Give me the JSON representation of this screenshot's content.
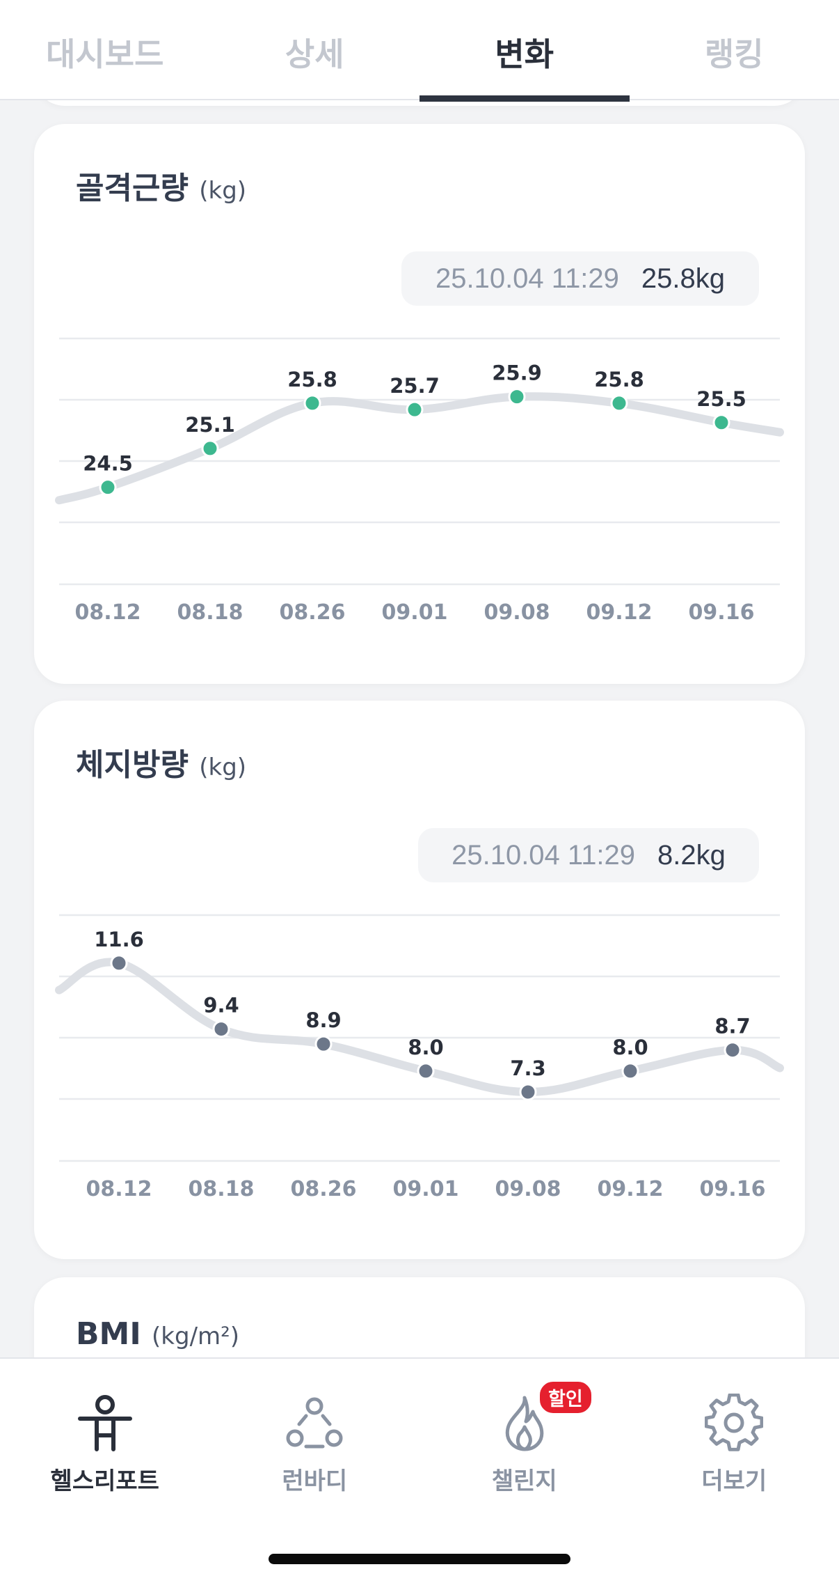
{
  "top_tabs": [
    {
      "label": "대시보드",
      "active": false
    },
    {
      "label": "상세",
      "active": false
    },
    {
      "label": "변화",
      "active": true
    },
    {
      "label": "랭킹",
      "active": false
    }
  ],
  "cards": [
    {
      "title": "골격근량",
      "unit": "(kg)",
      "latest_timestamp": "25.10.04 11:29",
      "latest_value": "25.8kg"
    },
    {
      "title": "체지방량",
      "unit": "(kg)",
      "latest_timestamp": "25.10.04 11:29",
      "latest_value": "8.2kg"
    },
    {
      "title": "BMI",
      "unit": "(kg/m²)"
    }
  ],
  "chart_data": [
    {
      "type": "line",
      "categories": [
        "08.12",
        "08.18",
        "08.26",
        "09.01",
        "09.08",
        "09.12",
        "09.16"
      ],
      "series": [
        {
          "values": [
            24.5,
            25.1,
            25.8,
            25.7,
            25.9,
            25.8,
            25.5
          ]
        }
      ],
      "point_color": "#3db88f",
      "line_color": "#dde0e5",
      "grid": true
    },
    {
      "type": "line",
      "categories": [
        "08.12",
        "08.18",
        "08.26",
        "09.01",
        "09.08",
        "09.12",
        "09.16"
      ],
      "series": [
        {
          "values": [
            11.6,
            9.4,
            8.9,
            8.0,
            7.3,
            8.0,
            8.7
          ]
        }
      ],
      "point_color": "#6c7789",
      "line_color": "#dde0e5",
      "grid": true
    }
  ],
  "bottom_nav": [
    {
      "label": "헬스리포트",
      "icon": "person-icon",
      "active": true
    },
    {
      "label": "런바디",
      "icon": "group-icon",
      "active": false
    },
    {
      "label": "챌린지",
      "icon": "flame-icon",
      "active": false,
      "badge": "할인"
    },
    {
      "label": "더보기",
      "icon": "gear-icon",
      "active": false
    }
  ],
  "colors": {
    "accent_green": "#3db88f",
    "accent_gray": "#6c7789",
    "badge_red": "#e5202e"
  }
}
